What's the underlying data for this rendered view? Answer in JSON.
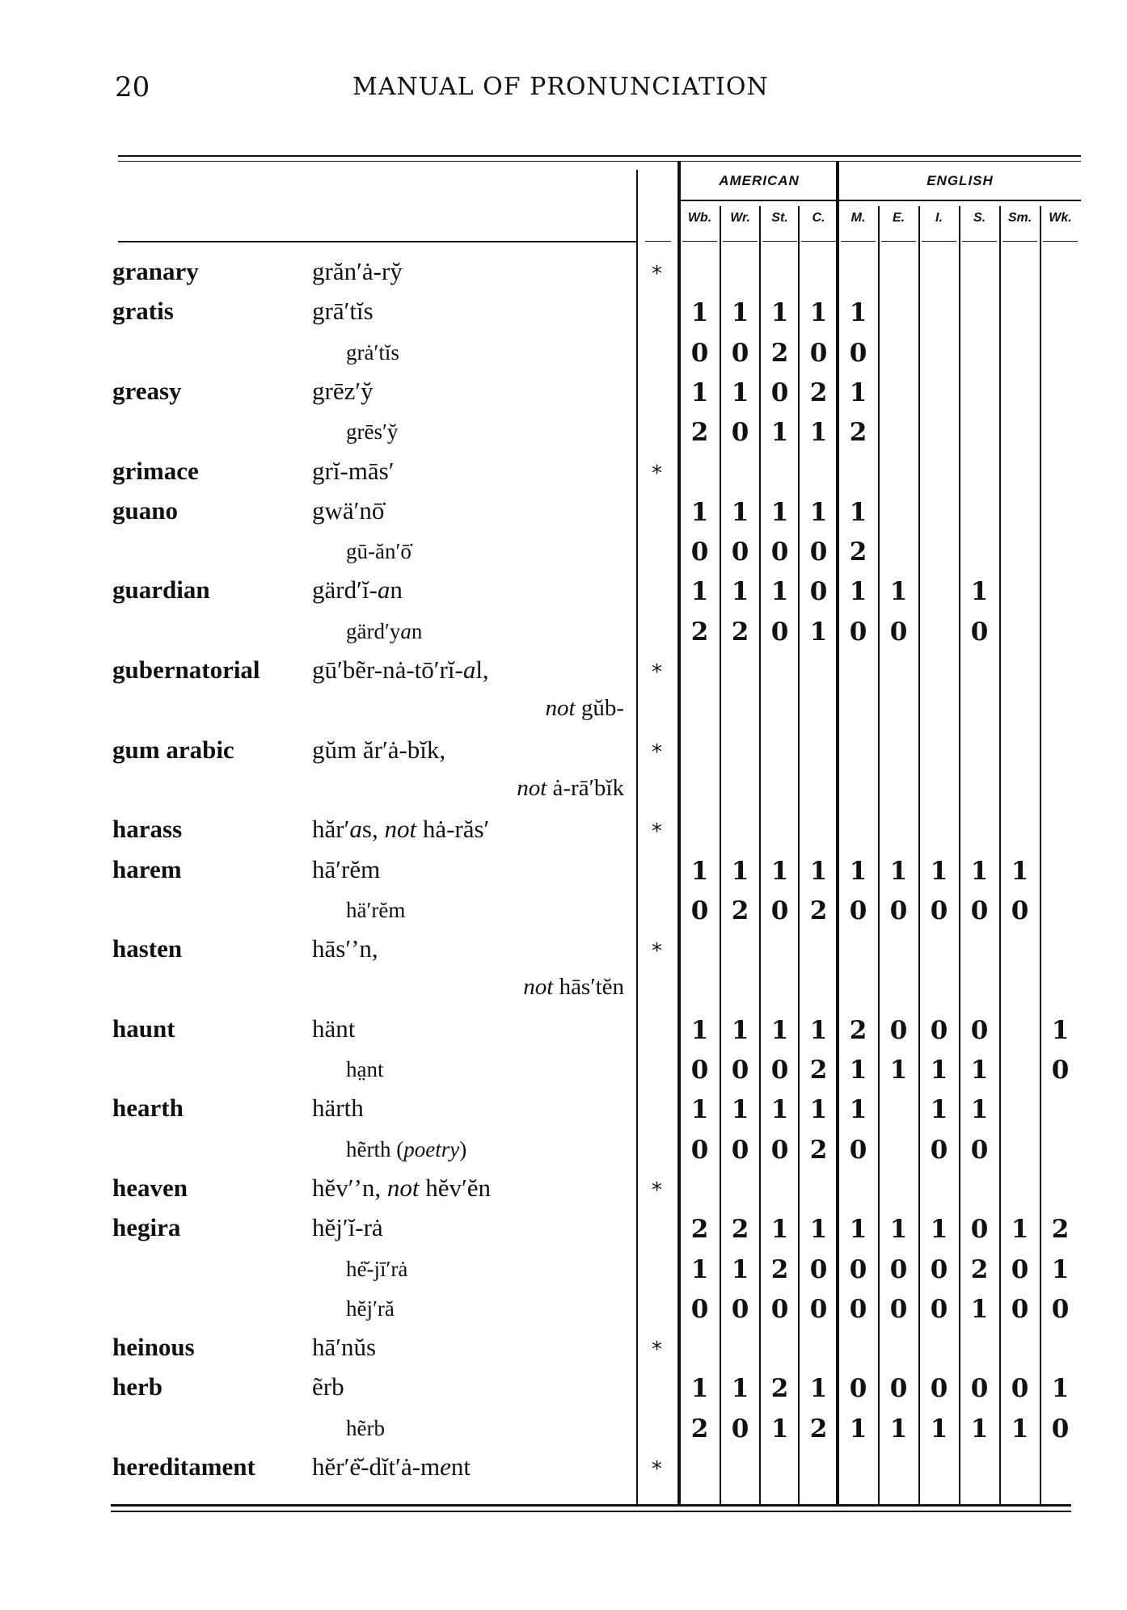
{
  "page": {
    "number": "20",
    "running_title": "MANUAL OF PRONUNCIATION"
  },
  "header": {
    "groups": [
      {
        "label": "AMERICAN"
      },
      {
        "label": "ENGLISH"
      }
    ],
    "columns": [
      "Wb.",
      "Wr.",
      "St.",
      "C.",
      "M.",
      "E.",
      "I.",
      "S.",
      "Sm.",
      "Wk."
    ]
  },
  "rows": [
    {
      "kind": "entry",
      "headword": "granary",
      "pron": [
        {
          "t": "grăn′ȧ-ry̆"
        }
      ],
      "star": "*",
      "values": []
    },
    {
      "kind": "entry",
      "headword": "gratis",
      "pron": [
        {
          "t": "grā′tĭs"
        }
      ],
      "values": [
        "1",
        "1",
        "1",
        "1",
        "1"
      ]
    },
    {
      "kind": "variant",
      "headword": "",
      "pron": [
        {
          "t": "grȧ′tĭs"
        }
      ],
      "values": [
        "0",
        "0",
        "2",
        "0",
        "0"
      ]
    },
    {
      "kind": "entry",
      "headword": "greasy",
      "pron": [
        {
          "t": "grēz′y̆"
        }
      ],
      "values": [
        "1",
        "1",
        "0",
        "2",
        "1"
      ]
    },
    {
      "kind": "variant",
      "headword": "",
      "pron": [
        {
          "t": "grēs′y̆"
        }
      ],
      "values": [
        "2",
        "0",
        "1",
        "1",
        "2"
      ]
    },
    {
      "kind": "entry",
      "headword": "grimace",
      "pron": [
        {
          "t": "grĭ-mās′"
        }
      ],
      "star": "*",
      "values": []
    },
    {
      "kind": "entry",
      "headword": "guano",
      "pron": [
        {
          "t": "gwä′nō̇"
        }
      ],
      "values": [
        "1",
        "1",
        "1",
        "1",
        "1"
      ]
    },
    {
      "kind": "variant",
      "headword": "",
      "pron": [
        {
          "t": "gū-ăn′ō̇"
        }
      ],
      "values": [
        "0",
        "0",
        "0",
        "0",
        "2"
      ]
    },
    {
      "kind": "entry",
      "headword": "guardian",
      "pron": [
        {
          "t": "gärd′ĭ-"
        },
        {
          "t": "a",
          "i": true
        },
        {
          "t": "n"
        }
      ],
      "values": [
        "1",
        "1",
        "1",
        "0",
        "1",
        "1",
        "",
        "1"
      ]
    },
    {
      "kind": "variant",
      "headword": "",
      "pron": [
        {
          "t": "gärd′y"
        },
        {
          "t": "a",
          "i": true
        },
        {
          "t": "n"
        }
      ],
      "values": [
        "2",
        "2",
        "0",
        "1",
        "0",
        "0",
        "",
        "0"
      ]
    },
    {
      "kind": "entry",
      "headword": "gubernatorial",
      "pron": [
        {
          "t": "gū′bẽr-nȧ-tō′rĭ-"
        },
        {
          "t": "a",
          "i": true
        },
        {
          "t": "l,"
        }
      ],
      "star": "*",
      "values": []
    },
    {
      "kind": "note",
      "headword": "",
      "pron": [
        {
          "t": "not",
          "i": true
        },
        {
          "t": " gŭb-"
        }
      ],
      "values": []
    },
    {
      "kind": "entry",
      "headword": "gum arabic",
      "pron": [
        {
          "t": "gŭm ăr′ȧ-bĭk,"
        }
      ],
      "star": "*",
      "values": []
    },
    {
      "kind": "note",
      "headword": "",
      "pron": [
        {
          "t": "not",
          "i": true
        },
        {
          "t": " ȧ-rā′bĭk"
        }
      ],
      "values": []
    },
    {
      "kind": "entry",
      "headword": "harass",
      "pron": [
        {
          "t": "hăr′"
        },
        {
          "t": "a",
          "i": true
        },
        {
          "t": "s, "
        },
        {
          "t": "not",
          "i": true
        },
        {
          "t": " hȧ-răs′"
        }
      ],
      "star": "*",
      "values": []
    },
    {
      "kind": "entry",
      "headword": "harem",
      "pron": [
        {
          "t": "hā′rĕm"
        }
      ],
      "values": [
        "1",
        "1",
        "1",
        "1",
        "1",
        "1",
        "1",
        "1",
        "1"
      ]
    },
    {
      "kind": "variant",
      "headword": "",
      "pron": [
        {
          "t": "hä′rĕm"
        }
      ],
      "values": [
        "0",
        "2",
        "0",
        "2",
        "0",
        "0",
        "0",
        "0",
        "0"
      ]
    },
    {
      "kind": "entry",
      "headword": "hasten",
      "pron": [
        {
          "t": "hās′’n,"
        }
      ],
      "star": "*",
      "values": []
    },
    {
      "kind": "note",
      "headword": "",
      "pron": [
        {
          "t": "not",
          "i": true
        },
        {
          "t": " hās′tĕn"
        }
      ],
      "values": []
    },
    {
      "kind": "entry",
      "headword": "haunt",
      "pron": [
        {
          "t": "hänt"
        }
      ],
      "values": [
        "1",
        "1",
        "1",
        "1",
        "2",
        "0",
        "0",
        "0",
        "",
        "1"
      ]
    },
    {
      "kind": "variant",
      "headword": "",
      "pron": [
        {
          "t": "ha̤nt"
        }
      ],
      "values": [
        "0",
        "0",
        "0",
        "2",
        "1",
        "1",
        "1",
        "1",
        "",
        "0"
      ]
    },
    {
      "kind": "entry",
      "headword": "hearth",
      "pron": [
        {
          "t": "härth"
        }
      ],
      "values": [
        "1",
        "1",
        "1",
        "1",
        "1",
        "",
        "1",
        "1"
      ]
    },
    {
      "kind": "variant",
      "headword": "",
      "pron": [
        {
          "t": "hẽrth ("
        },
        {
          "t": "poetry",
          "i": true
        },
        {
          "t": ")"
        }
      ],
      "values": [
        "0",
        "0",
        "0",
        "2",
        "0",
        "",
        "0",
        "0"
      ]
    },
    {
      "kind": "entry",
      "headword": "heaven",
      "pron": [
        {
          "t": "hĕv′’n, "
        },
        {
          "t": "not",
          "i": true
        },
        {
          "t": " hĕv′ĕn"
        }
      ],
      "star": "*",
      "values": []
    },
    {
      "kind": "entry",
      "headword": "hegira",
      "pron": [
        {
          "t": "hĕj′ĭ-rȧ"
        }
      ],
      "values": [
        "2",
        "2",
        "1",
        "1",
        "1",
        "1",
        "1",
        "0",
        "1",
        "2"
      ]
    },
    {
      "kind": "variant",
      "headword": "",
      "pron": [
        {
          "t": "hė̆-jī′rȧ"
        }
      ],
      "values": [
        "1",
        "1",
        "2",
        "0",
        "0",
        "0",
        "0",
        "2",
        "0",
        "1"
      ]
    },
    {
      "kind": "variant",
      "headword": "",
      "pron": [
        {
          "t": "hĕj′ră"
        }
      ],
      "values": [
        "0",
        "0",
        "0",
        "0",
        "0",
        "0",
        "0",
        "1",
        "0",
        "0"
      ]
    },
    {
      "kind": "entry",
      "headword": "heinous",
      "pron": [
        {
          "t": "hā′nŭs"
        }
      ],
      "star": "*",
      "values": []
    },
    {
      "kind": "entry",
      "headword": "herb",
      "pron": [
        {
          "t": "ẽrb"
        }
      ],
      "values": [
        "1",
        "1",
        "2",
        "1",
        "0",
        "0",
        "0",
        "0",
        "0",
        "1"
      ]
    },
    {
      "kind": "variant",
      "headword": "",
      "pron": [
        {
          "t": "hẽrb"
        }
      ],
      "values": [
        "2",
        "0",
        "1",
        "2",
        "1",
        "1",
        "1",
        "1",
        "1",
        "0"
      ]
    },
    {
      "kind": "entry",
      "headword": "hereditament",
      "pron": [
        {
          "t": "hĕr′ė̆-dĭt′ȧ-m"
        },
        {
          "t": "e",
          "i": true
        },
        {
          "t": "nt"
        }
      ],
      "star": "*",
      "values": []
    }
  ]
}
